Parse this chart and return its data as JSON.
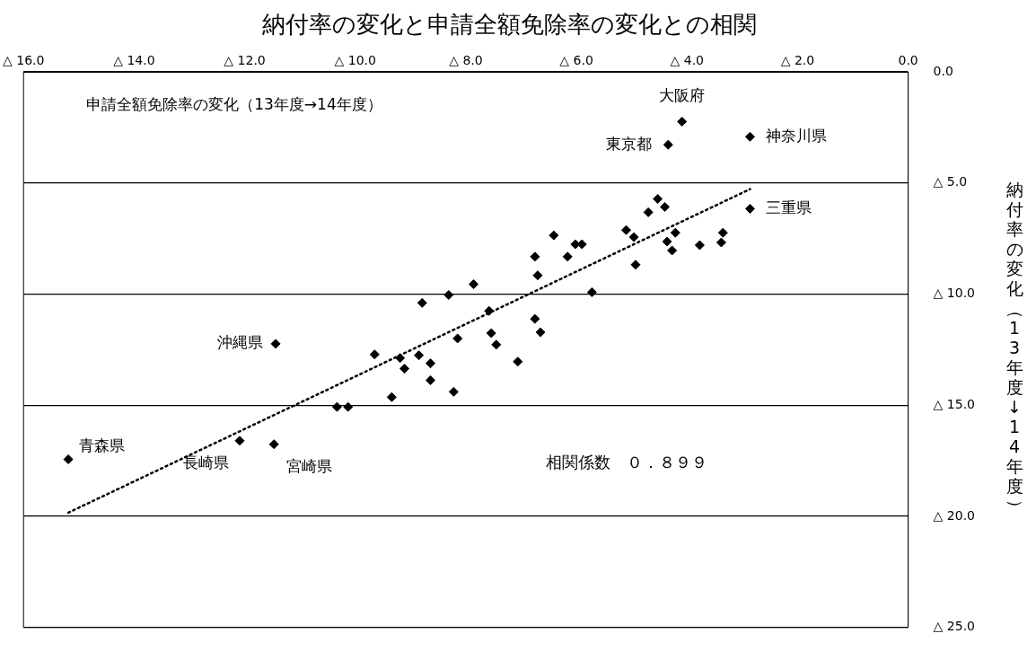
{
  "chart_data": {
    "type": "scatter",
    "title": "納付率の変化と申請全額免除率の変化との相関",
    "xlabel": "申請全額免除率の変化（13年度→14年度）",
    "ylabel": "納付率の変化（13年度↓14年度）",
    "series": [
      {
        "type": "scatter",
        "marker": "diamond",
        "color": "#000000",
        "x": [
          -4.09,
          -4.34,
          -2.86,
          -2.86,
          -11.44,
          -15.19,
          -12.09,
          -11.47,
          -4.53,
          -4.4,
          -4.7,
          -4.21,
          -4.36,
          -4.27,
          -5.1,
          -4.96,
          -4.93,
          -3.77,
          -3.35,
          -3.38,
          -6.41,
          -6.02,
          -5.9,
          -6.16,
          -6.75,
          -6.7,
          -5.72,
          -7.86,
          -8.31,
          -8.79,
          -7.58,
          -6.75,
          -6.65,
          -7.54,
          -8.15,
          -7.45,
          -9.65,
          -9.19,
          -8.85,
          -9.11,
          -8.64,
          -7.06,
          -8.64,
          -9.34,
          -8.22,
          -10.33,
          -10.13
        ],
        "values": [
          -2.24,
          -3.28,
          -2.92,
          -6.16,
          -12.24,
          -17.44,
          -16.6,
          -16.76,
          -5.72,
          -6.08,
          -6.32,
          -7.24,
          -7.64,
          -8.04,
          -7.12,
          -7.44,
          -8.68,
          -7.8,
          -7.24,
          -7.68,
          -7.36,
          -7.76,
          -7.76,
          -8.32,
          -8.32,
          -9.16,
          -9.92,
          -9.56,
          -10.04,
          -10.4,
          -10.76,
          -11.12,
          -11.72,
          -11.76,
          -12.0,
          -12.28,
          -12.72,
          -12.88,
          -12.76,
          -13.36,
          -13.12,
          -13.04,
          -13.88,
          -14.64,
          -14.4,
          -15.08,
          -15.08
        ]
      },
      {
        "type": "line",
        "color": "#000000",
        "line_style": "dotted",
        "x": [
          -15.19,
          -2.86
        ],
        "values": [
          -19.84,
          -5.28
        ]
      }
    ],
    "xlim": [
      -16,
      0
    ],
    "xticks": [
      {
        "value": -16,
        "label": "△ 16.0"
      },
      {
        "value": -14,
        "label": "△ 14.0"
      },
      {
        "value": -12,
        "label": "△ 12.0"
      },
      {
        "value": -10,
        "label": "△ 10.0"
      },
      {
        "value": -8,
        "label": "△ 8.0"
      },
      {
        "value": -6,
        "label": "△ 6.0"
      },
      {
        "value": -4,
        "label": "△ 4.0"
      },
      {
        "value": -2,
        "label": "△ 2.0"
      },
      {
        "value": 0,
        "label": "0.0"
      }
    ],
    "ylim": [
      -25,
      0
    ],
    "yticks": [
      {
        "value": 0,
        "label": "0.0"
      },
      {
        "value": -5,
        "label": "△ 5.0"
      },
      {
        "value": -10,
        "label": "△ 10.0"
      },
      {
        "value": -15,
        "label": "△ 15.0"
      },
      {
        "value": -20,
        "label": "△ 20.0"
      },
      {
        "value": -25,
        "label": "△ 25.0"
      }
    ],
    "grid": "y",
    "legend": false,
    "annotations": [
      {
        "text": "大阪府",
        "x": -4.09,
        "y": -2.24
      },
      {
        "text": "東京都",
        "x": -4.34,
        "y": -3.28
      },
      {
        "text": "神奈川県",
        "x": -2.86,
        "y": -2.92
      },
      {
        "text": "三重県",
        "x": -2.86,
        "y": -6.16
      },
      {
        "text": "沖縄県",
        "x": -11.44,
        "y": -12.24
      },
      {
        "text": "青森県",
        "x": -15.19,
        "y": -17.44
      },
      {
        "text": "長崎県",
        "x": -12.09,
        "y": -16.6
      },
      {
        "text": "宮崎県",
        "x": -11.47,
        "y": -16.76
      },
      "相関係数　０．８９９"
    ]
  }
}
